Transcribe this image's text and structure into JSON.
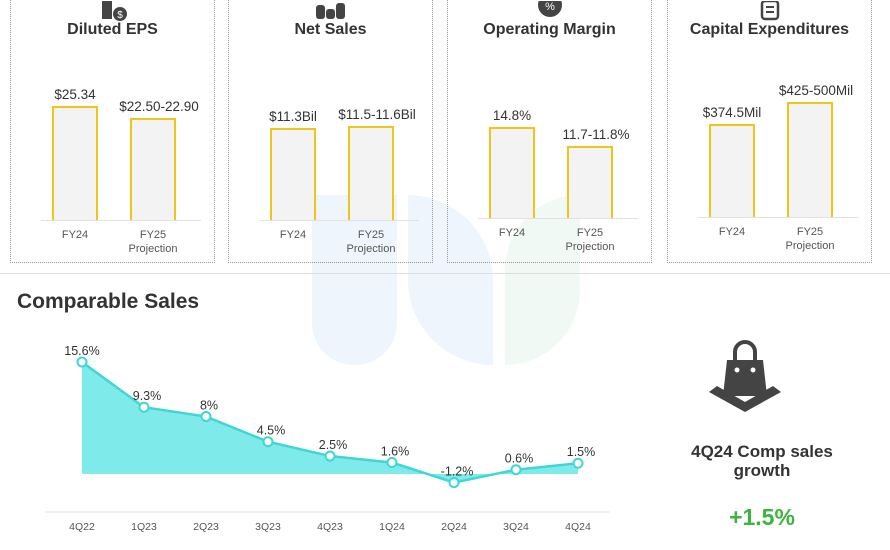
{
  "cards": [
    {
      "title": "Diluted EPS",
      "icon": "person-dollar-icon",
      "bars": [
        {
          "category": "FY24",
          "sub": "",
          "label": "$25.34",
          "value": 25.34
        },
        {
          "category": "FY25",
          "sub": "Projection",
          "label": "$22.50-22.90",
          "value": 22.7
        }
      ]
    },
    {
      "title": "Net Sales",
      "icon": "coin-stacks-icon",
      "bars": [
        {
          "category": "FY24",
          "sub": "",
          "label": "$11.3Bil",
          "value": 11.3
        },
        {
          "category": "FY25",
          "sub": "Projection",
          "label": "$11.5-11.6Bil",
          "value": 11.55
        }
      ]
    },
    {
      "title": "Operating Margin",
      "icon": "percent-badge-icon",
      "bars": [
        {
          "category": "FY24",
          "sub": "",
          "label": "14.8%",
          "value": 14.8
        },
        {
          "category": "FY25",
          "sub": "Projection",
          "label": "11.7-11.8%",
          "value": 11.75
        }
      ]
    },
    {
      "title": "Capital Expenditures",
      "icon": "list-document-icon",
      "bars": [
        {
          "category": "FY24",
          "sub": "",
          "label": "$374.5Mil",
          "value": 374.5
        },
        {
          "category": "FY25",
          "sub": "Projection",
          "label": "$425-500Mil",
          "value": 462.5
        }
      ]
    }
  ],
  "colors": {
    "bar_fill": "#f3f3f3",
    "bar_stroke": "#f0c419",
    "line": "#3fd6d6",
    "area": "#7eeaea",
    "positive": "#3db43d",
    "icon": "#444444"
  },
  "section_title": "Comparable Sales",
  "chart_data": {
    "type": "area",
    "title": "Comparable Sales",
    "categories": [
      "4Q22",
      "1Q23",
      "2Q23",
      "3Q23",
      "4Q23",
      "1Q24",
      "2Q24",
      "3Q24",
      "4Q24"
    ],
    "values": [
      15.6,
      9.3,
      8,
      4.5,
      2.5,
      1.6,
      -1.2,
      0.6,
      1.5
    ],
    "labels": [
      "15.6%",
      "9.3%",
      "8%",
      "4.5%",
      "2.5%",
      "1.6%",
      "-1.2%",
      "0.6%",
      "1.5%"
    ],
    "grid": false
  },
  "highlight": {
    "icon": "shopping-bag-icon",
    "caption_line1": "4Q24 Comp sales",
    "caption_line2": "growth",
    "value": "+1.5%"
  }
}
